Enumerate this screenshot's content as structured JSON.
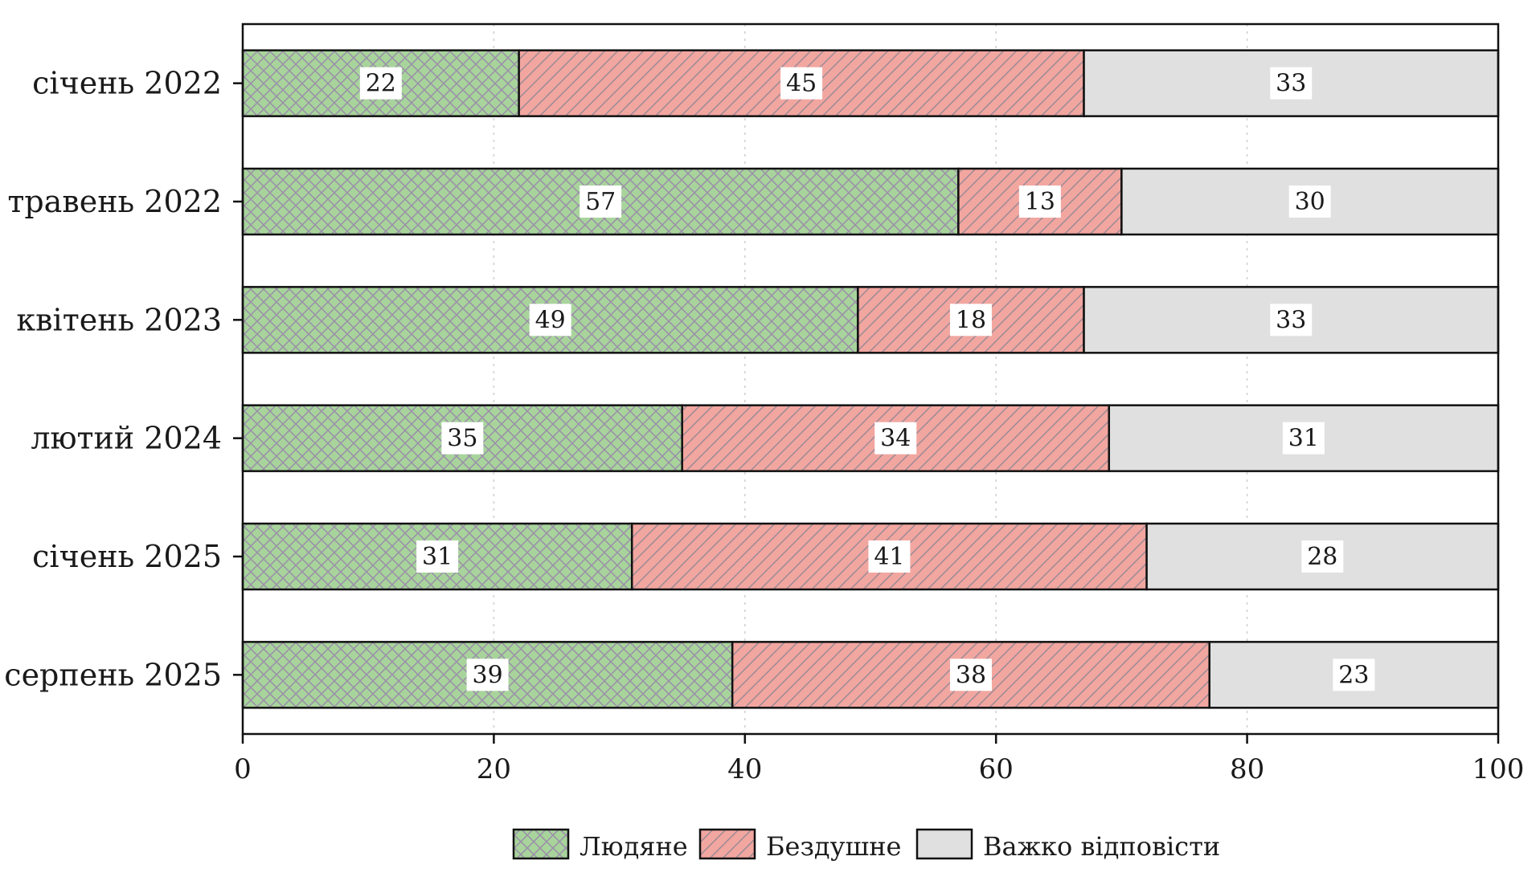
{
  "chart_data": {
    "type": "bar",
    "orientation": "horizontal",
    "stacked": true,
    "categories": [
      "січень 2022",
      "травень 2022",
      "квітень 2023",
      "лютий 2024",
      "січень 2025",
      "серпень 2025"
    ],
    "series": [
      {
        "name": "Людяне",
        "values": [
          22,
          57,
          49,
          35,
          31,
          39
        ],
        "color": "#a8d49c",
        "pattern": "crosshatch"
      },
      {
        "name": "Бездушне",
        "values": [
          45,
          13,
          18,
          34,
          41,
          38
        ],
        "color": "#f2a6a0",
        "pattern": "diagonal"
      },
      {
        "name": "Важко відповісти",
        "values": [
          33,
          30,
          33,
          31,
          28,
          23
        ],
        "color": "#e0e0e0",
        "pattern": "none"
      }
    ],
    "xlim": [
      0,
      100
    ],
    "xticks": [
      0,
      20,
      40,
      60,
      80,
      100
    ],
    "title": "",
    "xlabel": "",
    "ylabel": "",
    "grid": "vertical dotted",
    "legend_position": "bottom",
    "data_labels": true
  }
}
